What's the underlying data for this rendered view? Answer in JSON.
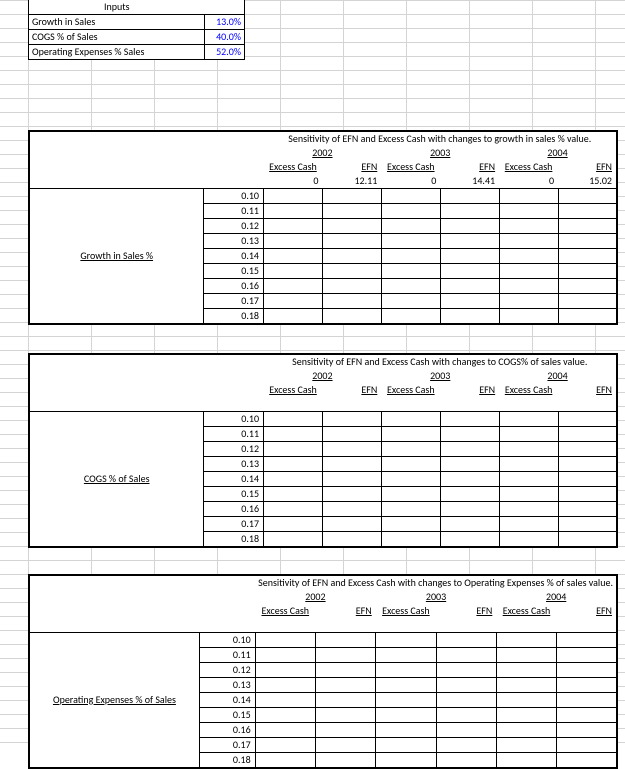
{
  "inputs": {
    "header": "Inputs",
    "rows": [
      {
        "label": "Growth in Sales",
        "value": "13.0%",
        "color": "#0000ff"
      },
      {
        "label": "COGS % of Sales",
        "value": "40.0%",
        "color": "#0000ff"
      },
      {
        "label": "Operating Expenses % Sales",
        "value": "52.0%",
        "color": "#0000ff"
      }
    ]
  },
  "blocks": [
    {
      "title": "Sensitivity of EFN and Excess Cash with changes to growth in sales % value.",
      "row_label": "Growth in Sales %",
      "years": [
        "2002",
        "2003",
        "2004"
      ],
      "col_headers": [
        "Excess Cash",
        "EFN",
        "Excess Cash",
        "EFN",
        "Excess Cash",
        "EFN"
      ],
      "first_values": [
        "0",
        "12.11",
        "0",
        "14.41",
        "0",
        "15.02"
      ],
      "row_values": [
        "0.10",
        "0.11",
        "0.12",
        "0.13",
        "0.14",
        "0.15",
        "0.16",
        "0.17",
        "0.18"
      ]
    },
    {
      "title": "Sensitivity of EFN and Excess Cash with changes to COGS% of sales value.",
      "row_label": "COGS % of Sales",
      "years": [
        "2002",
        "2003",
        "2004"
      ],
      "col_headers": [
        "Excess Cash",
        "EFN",
        "Excess Cash",
        "EFN",
        "Excess Cash",
        "EFN"
      ],
      "first_values": [
        "",
        "",
        "",
        "",
        "",
        ""
      ],
      "row_values": [
        "0.10",
        "0.11",
        "0.12",
        "0.13",
        "0.14",
        "0.15",
        "0.16",
        "0.17",
        "0.18"
      ]
    },
    {
      "title": "Sensitivity of EFN and Excess Cash with changes to Operating Expenses % of sales value.",
      "row_label": "Operating Expenses % of Sales",
      "years": [
        "2002",
        "2003",
        "2004"
      ],
      "col_headers": [
        "Excess Cash",
        "EFN",
        "Excess Cash",
        "EFN",
        "Excess Cash",
        "EFN"
      ],
      "first_values": [
        "",
        "",
        "",
        "",
        "",
        ""
      ],
      "row_values": [
        "0.10",
        "0.11",
        "0.12",
        "0.13",
        "0.14",
        "0.15",
        "0.16",
        "0.17",
        "0.18"
      ]
    }
  ],
  "layout": {
    "block_tops": [
      130,
      353,
      574
    ],
    "label_row_index": 4
  }
}
